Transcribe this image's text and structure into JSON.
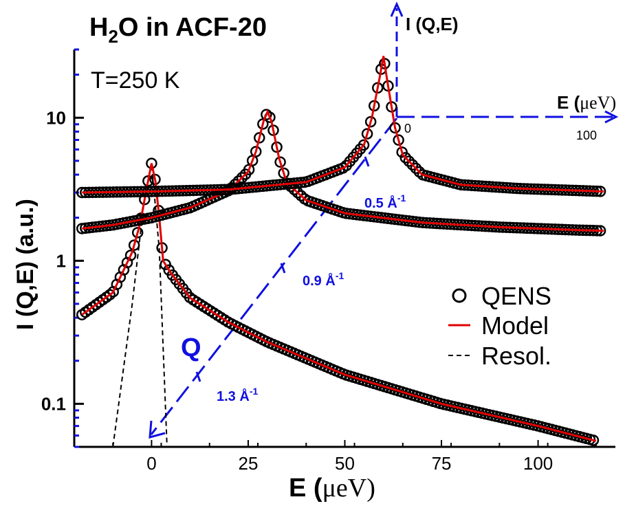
{
  "chart_data": {
    "type": "scatter",
    "title": "H2O in ACF-20",
    "title_main": "H",
    "title_sub": "2",
    "title_rest": "O in ACF-20",
    "subtitle": "T=250 K",
    "xlabel_prefix": "E (",
    "xlabel_unit": "μeV)",
    "ylabel": "I (Q,E) (a.u.)",
    "y_scale": "log",
    "xlim": [
      -20,
      120
    ],
    "ylim": [
      0.05,
      30
    ],
    "x_ticks": [
      0,
      25,
      50,
      75,
      100
    ],
    "x_tick_labels": [
      "0",
      "25",
      "50",
      "75",
      "100"
    ],
    "y_ticks": [
      0.1,
      1,
      10
    ],
    "y_tick_labels": [
      "0.1",
      "1",
      "10"
    ],
    "legend_position": "right",
    "legend": [
      {
        "label": "QENS",
        "marker": "open-circle",
        "color": "#000000"
      },
      {
        "label": "Model",
        "marker": "line",
        "color": "#e00000"
      },
      {
        "label": "Resol.",
        "marker": "dashed-line",
        "color": "#000000"
      }
    ],
    "series": [
      {
        "q_label": "1.3 Å",
        "q_sup": "-1",
        "x_offset": 0,
        "x": [
          -18,
          -10,
          -5,
          -3,
          -1,
          0,
          1,
          2,
          3,
          5,
          10,
          20,
          30,
          50,
          75,
          100,
          115
        ],
        "y": [
          0.42,
          0.6,
          1.15,
          1.8,
          3.5,
          4.8,
          3.6,
          2.0,
          1.0,
          0.82,
          0.55,
          0.37,
          0.27,
          0.16,
          0.1,
          0.07,
          0.055
        ]
      },
      {
        "q_label": "0.9 Å",
        "q_sup": "-1",
        "x_offset": 30,
        "x": [
          -18,
          -10,
          0,
          10,
          20,
          25,
          27,
          29,
          30,
          31,
          33,
          35,
          40,
          50,
          70,
          90,
          110,
          117
        ],
        "y": [
          1.68,
          1.78,
          2.0,
          2.35,
          3.1,
          4.2,
          5.8,
          9.5,
          11.0,
          9.5,
          5.2,
          3.5,
          2.65,
          2.15,
          1.85,
          1.72,
          1.64,
          1.62
        ]
      },
      {
        "q_label": "0.5 Å",
        "q_sup": "-1",
        "x_offset": 60,
        "x": [
          -18,
          0,
          20,
          40,
          50,
          55,
          57,
          59,
          60,
          61,
          63,
          65,
          70,
          80,
          95,
          110,
          117
        ],
        "y": [
          3.0,
          3.05,
          3.15,
          3.55,
          4.5,
          6.5,
          10.0,
          19.0,
          27.0,
          18.0,
          8.5,
          5.5,
          4.0,
          3.4,
          3.2,
          3.1,
          3.05
        ]
      }
    ],
    "resolution": {
      "x": [
        -10,
        -5,
        -2,
        0,
        2,
        4
      ],
      "y": [
        0.05,
        0.5,
        2.5,
        4.8,
        1.2,
        0.05
      ]
    },
    "inset_axes": {
      "color": "#1010e0",
      "ylabel": "I (Q,E)",
      "xlabel_prefix": "E (",
      "xlabel_unit": "μeV)",
      "x_tick_labels": [
        "0",
        "100"
      ],
      "q_axis_label": "Q"
    }
  }
}
